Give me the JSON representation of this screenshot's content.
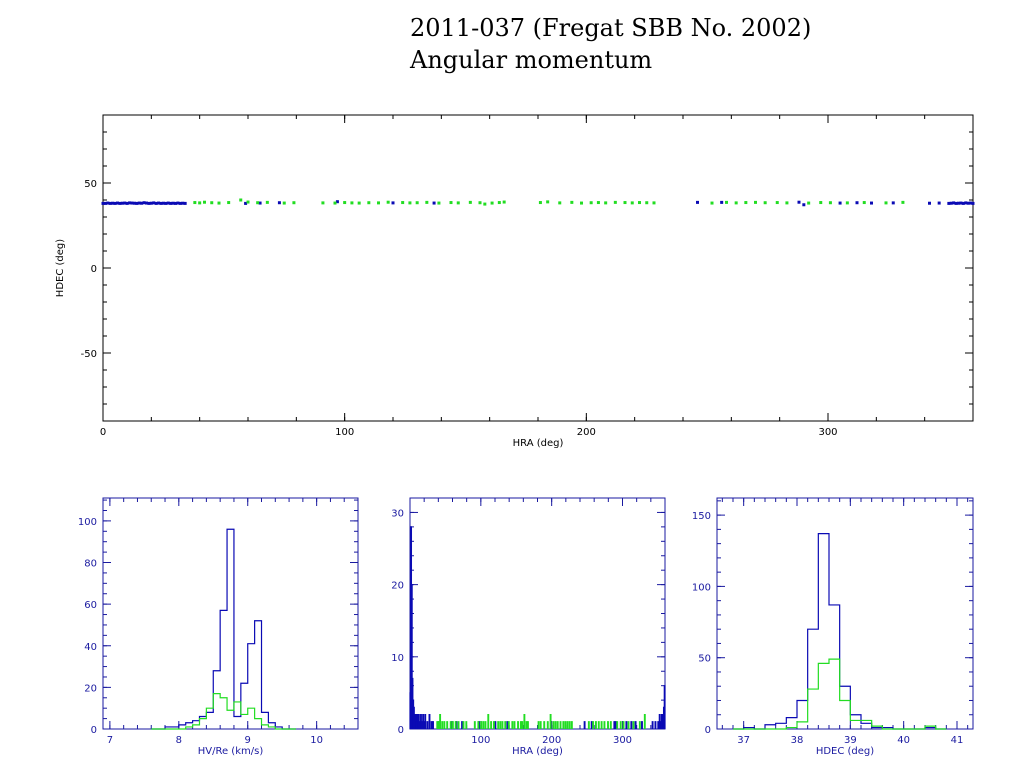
{
  "title": "2011-037 (Fregat SBB No. 2002)",
  "subtitle": "Angular momentum",
  "colors": {
    "blue": "#0a0ab4",
    "green": "#22dd22",
    "axis": "#000000",
    "hist_axis": "#1a1aa0"
  },
  "chart_data": [
    {
      "id": "main",
      "type": "scatter",
      "xlabel": "HRA (deg)",
      "ylabel": "HDEC (deg)",
      "xlim": [
        0,
        360
      ],
      "ylim": [
        -90,
        90
      ],
      "xticks": [
        0,
        100,
        200,
        300
      ],
      "yticks": [
        -50,
        0,
        50
      ],
      "series": [
        {
          "color": "blue",
          "points": [
            [
              0,
              38
            ],
            [
              1,
              38
            ],
            [
              2,
              38.2
            ],
            [
              3,
              38
            ],
            [
              4,
              38.1
            ],
            [
              5,
              38
            ],
            [
              6,
              38.2
            ],
            [
              7,
              38
            ],
            [
              8,
              38.1
            ],
            [
              9,
              38.2
            ],
            [
              10,
              38
            ],
            [
              11,
              38.3
            ],
            [
              12,
              38.2
            ],
            [
              13,
              38.1
            ],
            [
              14,
              38
            ],
            [
              15,
              38.2
            ],
            [
              16,
              38.1
            ],
            [
              17,
              38.4
            ],
            [
              18,
              38.2
            ],
            [
              19,
              38
            ],
            [
              20,
              38.1
            ],
            [
              21,
              38.3
            ],
            [
              22,
              38
            ],
            [
              23,
              38.2
            ],
            [
              24,
              38
            ],
            [
              25,
              38.1
            ],
            [
              26,
              38
            ],
            [
              27,
              38.2
            ],
            [
              28,
              38
            ],
            [
              29,
              38.1
            ],
            [
              30,
              38
            ],
            [
              31,
              38.2
            ],
            [
              32,
              38
            ],
            [
              33,
              38.1
            ],
            [
              34,
              38
            ],
            [
              59,
              38
            ],
            [
              65,
              38.2
            ],
            [
              73,
              38.4
            ],
            [
              97,
              39
            ],
            [
              120,
              38.3
            ],
            [
              137,
              38.2
            ],
            [
              246,
              38.6
            ],
            [
              256,
              38.6
            ],
            [
              288,
              38.7
            ],
            [
              290,
              37.2
            ],
            [
              305,
              38.2
            ],
            [
              312,
              38.4
            ],
            [
              318,
              38.2
            ],
            [
              327,
              38.3
            ],
            [
              342,
              38.1
            ],
            [
              346,
              38.2
            ],
            [
              350,
              38
            ],
            [
              351,
              38.1
            ],
            [
              352,
              38.3
            ],
            [
              353,
              38
            ],
            [
              354,
              38.1
            ],
            [
              355,
              38.2
            ],
            [
              356,
              38
            ],
            [
              357,
              38.3
            ],
            [
              358,
              38.1
            ],
            [
              359,
              38.2
            ],
            [
              360,
              38
            ]
          ]
        },
        {
          "color": "green",
          "points": [
            [
              38,
              38.5
            ],
            [
              40,
              38.3
            ],
            [
              42,
              38.7
            ],
            [
              45,
              38.4
            ],
            [
              48,
              38.2
            ],
            [
              52,
              38.5
            ],
            [
              57,
              40
            ],
            [
              60,
              38.8
            ],
            [
              64,
              38.4
            ],
            [
              68,
              38.6
            ],
            [
              75,
              38.2
            ],
            [
              79,
              38.4
            ],
            [
              91,
              38.3
            ],
            [
              96,
              38.2
            ],
            [
              100,
              38.5
            ],
            [
              103,
              38.3
            ],
            [
              106,
              38.2
            ],
            [
              110,
              38.4
            ],
            [
              114,
              38.3
            ],
            [
              118,
              38.7
            ],
            [
              124,
              38.5
            ],
            [
              127,
              38.3
            ],
            [
              130,
              38.4
            ],
            [
              134,
              38.6
            ],
            [
              139,
              38.2
            ],
            [
              144,
              38.5
            ],
            [
              147,
              38.3
            ],
            [
              152,
              38.6
            ],
            [
              156,
              38.4
            ],
            [
              158,
              37.6
            ],
            [
              161,
              38.2
            ],
            [
              164,
              38.5
            ],
            [
              166,
              38.8
            ],
            [
              181,
              38.5
            ],
            [
              184,
              38.9
            ],
            [
              189,
              38.3
            ],
            [
              194,
              38.6
            ],
            [
              198,
              38.2
            ],
            [
              202,
              38.4
            ],
            [
              205,
              38.5
            ],
            [
              208,
              38.3
            ],
            [
              212,
              38.6
            ],
            [
              216,
              38.5
            ],
            [
              219,
              38.3
            ],
            [
              222,
              38.5
            ],
            [
              225,
              38.4
            ],
            [
              228,
              38.3
            ],
            [
              252,
              38.2
            ],
            [
              258,
              38.6
            ],
            [
              262,
              38.3
            ],
            [
              266,
              38.5
            ],
            [
              270,
              38.6
            ],
            [
              274,
              38.4
            ],
            [
              279,
              38.5
            ],
            [
              283,
              38.3
            ],
            [
              292,
              38.2
            ],
            [
              297,
              38.5
            ],
            [
              301,
              38.4
            ],
            [
              308,
              38.3
            ],
            [
              315,
              38.5
            ],
            [
              324,
              38.3
            ],
            [
              331,
              38.6
            ]
          ]
        }
      ]
    },
    {
      "id": "h1",
      "type": "histogram",
      "xlabel": "HV/Re (km/s)",
      "xlim": [
        6.9,
        10.6
      ],
      "ylim": [
        0,
        111
      ],
      "xticks": [
        7,
        8,
        9,
        10
      ],
      "yticks": [
        0,
        20,
        40,
        60,
        80,
        100
      ],
      "edges": [
        7.6,
        7.7,
        7.8,
        7.9,
        8.0,
        8.1,
        8.2,
        8.3,
        8.4,
        8.5,
        8.6,
        8.7,
        8.8,
        8.9,
        9.0,
        9.1,
        9.2,
        9.3,
        9.4,
        9.5,
        9.6,
        9.7
      ],
      "series": [
        {
          "color": "blue",
          "values": [
            0,
            0,
            1,
            1,
            2,
            3,
            4,
            6,
            8,
            28,
            57,
            96,
            6,
            22,
            41,
            52,
            8,
            3,
            1,
            0,
            0
          ]
        },
        {
          "color": "green",
          "values": [
            0,
            0,
            0,
            0,
            0,
            1,
            2,
            5,
            10,
            17,
            15,
            9,
            13,
            7,
            10,
            5,
            2,
            1,
            0,
            0,
            0
          ]
        }
      ]
    },
    {
      "id": "h2",
      "type": "histogram",
      "xlabel": "HRA (deg)",
      "xlim": [
        0,
        360
      ],
      "ylim": [
        0,
        32
      ],
      "xticks": [
        100,
        200,
        300
      ],
      "yticks": [
        0,
        10,
        20,
        30
      ],
      "edges_step": 1,
      "series": [
        {
          "color": "blue",
          "bins": [
            [
              0,
              5
            ],
            [
              1,
              28
            ],
            [
              2,
              20
            ],
            [
              3,
              7
            ],
            [
              4,
              4
            ],
            [
              5,
              3
            ],
            [
              6,
              2
            ],
            [
              7,
              2
            ],
            [
              8,
              2
            ],
            [
              9,
              1
            ],
            [
              10,
              2
            ],
            [
              11,
              1
            ],
            [
              12,
              2
            ],
            [
              13,
              1
            ],
            [
              15,
              2
            ],
            [
              16,
              1
            ],
            [
              18,
              2
            ],
            [
              20,
              1
            ],
            [
              21,
              2
            ],
            [
              24,
              1
            ],
            [
              27,
              2
            ],
            [
              30,
              1
            ],
            [
              32,
              1
            ],
            [
              40,
              1
            ],
            [
              59,
              1
            ],
            [
              65,
              1
            ],
            [
              73,
              1
            ],
            [
              97,
              1
            ],
            [
              120,
              1
            ],
            [
              137,
              1
            ],
            [
              246,
              1
            ],
            [
              256,
              1
            ],
            [
              288,
              1
            ],
            [
              290,
              1
            ],
            [
              305,
              1
            ],
            [
              312,
              1
            ],
            [
              318,
              1
            ],
            [
              327,
              1
            ],
            [
              342,
              1
            ],
            [
              346,
              1
            ],
            [
              350,
              1
            ],
            [
              352,
              2
            ],
            [
              354,
              1
            ],
            [
              355,
              2
            ],
            [
              356,
              1
            ],
            [
              357,
              2
            ],
            [
              358,
              3
            ],
            [
              359,
              6
            ]
          ]
        },
        {
          "color": "green",
          "bins": [
            [
              38,
              1
            ],
            [
              40,
              1
            ],
            [
              42,
              2
            ],
            [
              45,
              1
            ],
            [
              48,
              1
            ],
            [
              52,
              1
            ],
            [
              57,
              1
            ],
            [
              60,
              1
            ],
            [
              64,
              1
            ],
            [
              68,
              1
            ],
            [
              75,
              1
            ],
            [
              79,
              1
            ],
            [
              91,
              1
            ],
            [
              96,
              1
            ],
            [
              100,
              1
            ],
            [
              103,
              1
            ],
            [
              106,
              1
            ],
            [
              110,
              2
            ],
            [
              114,
              1
            ],
            [
              118,
              1
            ],
            [
              124,
              1
            ],
            [
              127,
              1
            ],
            [
              130,
              1
            ],
            [
              134,
              1
            ],
            [
              139,
              1
            ],
            [
              144,
              1
            ],
            [
              147,
              1
            ],
            [
              152,
              1
            ],
            [
              156,
              1
            ],
            [
              158,
              1
            ],
            [
              161,
              2
            ],
            [
              164,
              1
            ],
            [
              166,
              1
            ],
            [
              181,
              1
            ],
            [
              184,
              1
            ],
            [
              189,
              1
            ],
            [
              194,
              1
            ],
            [
              198,
              2
            ],
            [
              202,
              1
            ],
            [
              205,
              1
            ],
            [
              208,
              1
            ],
            [
              212,
              1
            ],
            [
              216,
              1
            ],
            [
              219,
              1
            ],
            [
              222,
              1
            ],
            [
              225,
              1
            ],
            [
              228,
              1
            ],
            [
              252,
              1
            ],
            [
              258,
              1
            ],
            [
              262,
              1
            ],
            [
              266,
              1
            ],
            [
              270,
              1
            ],
            [
              274,
              1
            ],
            [
              279,
              1
            ],
            [
              283,
              1
            ],
            [
              292,
              1
            ],
            [
              297,
              1
            ],
            [
              301,
              1
            ],
            [
              308,
              1
            ],
            [
              315,
              1
            ],
            [
              324,
              1
            ],
            [
              331,
              2
            ]
          ]
        }
      ]
    },
    {
      "id": "h3",
      "type": "histogram",
      "xlabel": "HDEC (deg)",
      "xlim": [
        36.5,
        41.3
      ],
      "ylim": [
        0,
        162
      ],
      "xticks": [
        37,
        38,
        39,
        40,
        41
      ],
      "yticks": [
        0,
        50,
        100,
        150
      ],
      "edges": [
        36.8,
        37.0,
        37.2,
        37.4,
        37.6,
        37.8,
        38.0,
        38.2,
        38.4,
        38.6,
        38.8,
        39.0,
        39.2,
        39.4,
        39.6,
        39.8,
        40.0,
        40.2,
        40.4,
        40.6,
        40.8
      ],
      "series": [
        {
          "color": "blue",
          "values": [
            0,
            1,
            0,
            3,
            4,
            8,
            20,
            70,
            137,
            87,
            30,
            10,
            4,
            1,
            1,
            0,
            0,
            0,
            1,
            0
          ]
        },
        {
          "color": "green",
          "values": [
            0,
            0,
            0,
            0,
            0,
            1,
            5,
            28,
            46,
            49,
            20,
            6,
            6,
            2,
            0,
            0,
            0,
            0,
            2,
            0
          ]
        }
      ]
    }
  ]
}
